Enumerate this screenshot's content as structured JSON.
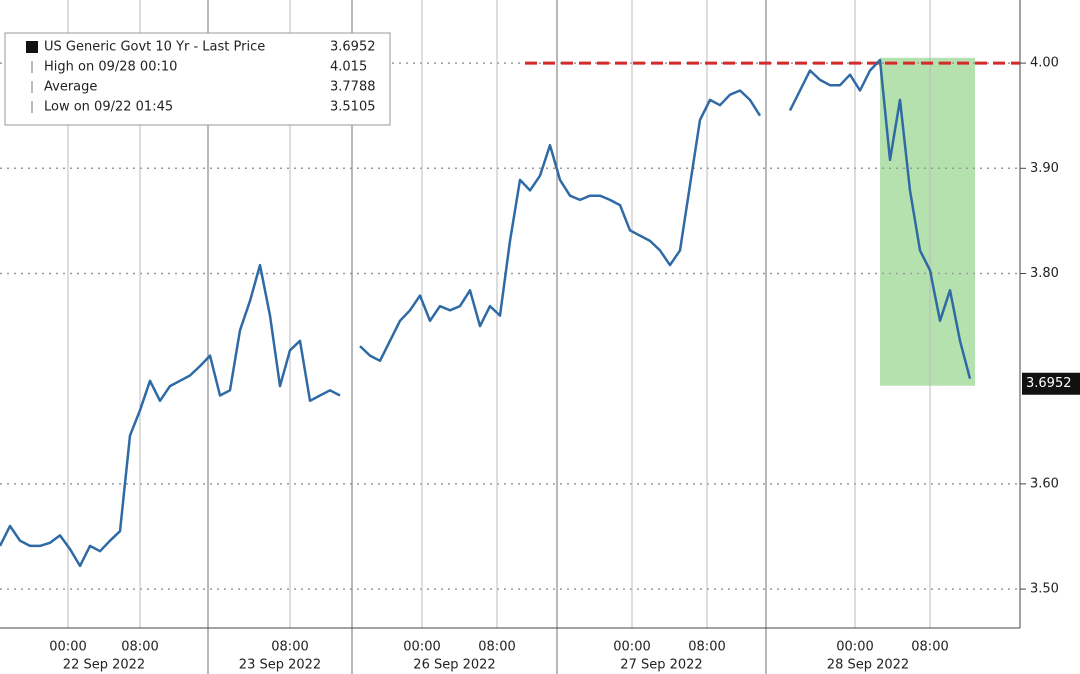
{
  "chart_data": {
    "type": "line",
    "series": [
      {
        "name": "US Generic Govt 10 Yr - Last Price",
        "color": "#2f6aa5",
        "values": [
          3.541,
          3.56,
          3.546,
          3.541,
          3.541,
          3.544,
          3.551,
          3.538,
          3.522,
          3.541,
          3.536,
          3.546,
          3.555,
          3.646,
          3.67,
          3.698,
          3.679,
          3.693,
          3.698,
          3.703,
          3.712,
          3.722,
          3.684,
          3.689,
          3.746,
          3.774,
          3.808,
          3.76,
          3.693,
          3.727,
          3.736,
          3.679,
          3.684,
          3.689,
          3.684,
          null,
          3.731,
          3.722,
          3.717,
          3.736,
          3.755,
          3.765,
          3.779,
          3.755,
          3.769,
          3.765,
          3.769,
          3.784,
          3.75,
          3.769,
          3.76,
          3.831,
          3.889,
          3.879,
          3.893,
          3.922,
          3.889,
          3.874,
          3.87,
          3.874,
          3.874,
          3.87,
          3.865,
          3.841,
          3.836,
          3.831,
          3.822,
          3.808,
          3.822,
          3.884,
          3.946,
          3.965,
          3.96,
          3.97,
          3.974,
          3.965,
          3.95,
          null,
          null,
          3.955,
          3.974,
          3.993,
          3.984,
          3.979,
          3.979,
          3.989,
          3.974,
          3.993,
          4.003,
          3.908,
          3.965,
          3.879,
          3.822,
          3.803,
          3.755,
          3.784,
          3.736,
          3.7
        ]
      }
    ],
    "legend": [
      {
        "label": "US Generic Govt 10 Yr - Last Price",
        "value": 3.6952
      },
      {
        "label": "High on 09/28 00:10",
        "value": 4.015
      },
      {
        "label": "Average",
        "value": 3.7788
      },
      {
        "label": "Low on 09/22 01:45",
        "value": 3.5105
      }
    ],
    "last_price": 3.6952,
    "xlim": [
      0,
      102
    ],
    "xticks": [
      {
        "value": 6.8,
        "label": "00:00"
      },
      {
        "value": 14,
        "label": "08:00"
      },
      {
        "value": 29,
        "label": "08:00"
      },
      {
        "value": 42.2,
        "label": "00:00"
      },
      {
        "value": 49.7,
        "label": "08:00"
      },
      {
        "value": 63.2,
        "label": "00:00"
      },
      {
        "value": 70.7,
        "label": "08:00"
      },
      {
        "value": 85.5,
        "label": "00:00"
      },
      {
        "value": 93,
        "label": "08:00"
      }
    ],
    "sessions": [
      {
        "label": "22 Sep 2022",
        "start": 0,
        "end": 20.8
      },
      {
        "label": "23 Sep 2022",
        "start": 20.8,
        "end": 35.2
      },
      {
        "label": "26 Sep 2022",
        "start": 35.2,
        "end": 55.7
      },
      {
        "label": "27 Sep 2022",
        "start": 55.7,
        "end": 76.6
      },
      {
        "label": "28 Sep 2022",
        "start": 76.6,
        "end": 102
      }
    ],
    "ylim": [
      3.463,
      4.06
    ],
    "yticks": [
      {
        "value": 3.5,
        "label": "3.50"
      },
      {
        "value": 3.6,
        "label": "3.60"
      },
      {
        "value": 3.8,
        "label": "3.80"
      },
      {
        "value": 3.9,
        "label": "3.90"
      },
      {
        "value": 4.0,
        "label": "4.00"
      }
    ],
    "reference_line": {
      "value": 4.0,
      "start": 52.5,
      "color": "#d42a2a"
    },
    "highlight": {
      "x": [
        88,
        97.5
      ],
      "y": [
        3.6933,
        4.005
      ],
      "color": "#a8dca0"
    },
    "grid": true
  }
}
